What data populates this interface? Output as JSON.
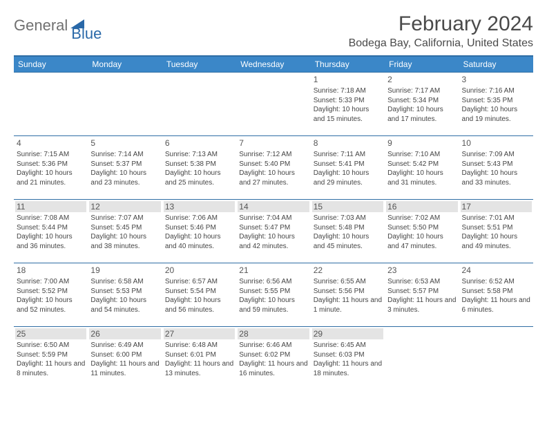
{
  "logo": {
    "part1": "General",
    "part2": "Blue"
  },
  "month_title": "February 2024",
  "location": "Bodega Bay, California, United States",
  "colors": {
    "header_bg": "#3b87c8",
    "header_border": "#2e6da4",
    "shade_bg": "#e4e4e4",
    "logo_gray": "#707070",
    "logo_blue": "#2968a8"
  },
  "weekdays": [
    "Sunday",
    "Monday",
    "Tuesday",
    "Wednesday",
    "Thursday",
    "Friday",
    "Saturday"
  ],
  "weeks": [
    [
      null,
      null,
      null,
      null,
      {
        "n": "1",
        "sr": "Sunrise: 7:18 AM",
        "ss": "Sunset: 5:33 PM",
        "dl": "Daylight: 10 hours and 15 minutes."
      },
      {
        "n": "2",
        "sr": "Sunrise: 7:17 AM",
        "ss": "Sunset: 5:34 PM",
        "dl": "Daylight: 10 hours and 17 minutes."
      },
      {
        "n": "3",
        "sr": "Sunrise: 7:16 AM",
        "ss": "Sunset: 5:35 PM",
        "dl": "Daylight: 10 hours and 19 minutes."
      }
    ],
    [
      {
        "n": "4",
        "sr": "Sunrise: 7:15 AM",
        "ss": "Sunset: 5:36 PM",
        "dl": "Daylight: 10 hours and 21 minutes."
      },
      {
        "n": "5",
        "sr": "Sunrise: 7:14 AM",
        "ss": "Sunset: 5:37 PM",
        "dl": "Daylight: 10 hours and 23 minutes."
      },
      {
        "n": "6",
        "sr": "Sunrise: 7:13 AM",
        "ss": "Sunset: 5:38 PM",
        "dl": "Daylight: 10 hours and 25 minutes."
      },
      {
        "n": "7",
        "sr": "Sunrise: 7:12 AM",
        "ss": "Sunset: 5:40 PM",
        "dl": "Daylight: 10 hours and 27 minutes."
      },
      {
        "n": "8",
        "sr": "Sunrise: 7:11 AM",
        "ss": "Sunset: 5:41 PM",
        "dl": "Daylight: 10 hours and 29 minutes."
      },
      {
        "n": "9",
        "sr": "Sunrise: 7:10 AM",
        "ss": "Sunset: 5:42 PM",
        "dl": "Daylight: 10 hours and 31 minutes."
      },
      {
        "n": "10",
        "sr": "Sunrise: 7:09 AM",
        "ss": "Sunset: 5:43 PM",
        "dl": "Daylight: 10 hours and 33 minutes."
      }
    ],
    [
      {
        "n": "11",
        "sr": "Sunrise: 7:08 AM",
        "ss": "Sunset: 5:44 PM",
        "dl": "Daylight: 10 hours and 36 minutes."
      },
      {
        "n": "12",
        "sr": "Sunrise: 7:07 AM",
        "ss": "Sunset: 5:45 PM",
        "dl": "Daylight: 10 hours and 38 minutes."
      },
      {
        "n": "13",
        "sr": "Sunrise: 7:06 AM",
        "ss": "Sunset: 5:46 PM",
        "dl": "Daylight: 10 hours and 40 minutes."
      },
      {
        "n": "14",
        "sr": "Sunrise: 7:04 AM",
        "ss": "Sunset: 5:47 PM",
        "dl": "Daylight: 10 hours and 42 minutes."
      },
      {
        "n": "15",
        "sr": "Sunrise: 7:03 AM",
        "ss": "Sunset: 5:48 PM",
        "dl": "Daylight: 10 hours and 45 minutes."
      },
      {
        "n": "16",
        "sr": "Sunrise: 7:02 AM",
        "ss": "Sunset: 5:50 PM",
        "dl": "Daylight: 10 hours and 47 minutes."
      },
      {
        "n": "17",
        "sr": "Sunrise: 7:01 AM",
        "ss": "Sunset: 5:51 PM",
        "dl": "Daylight: 10 hours and 49 minutes."
      }
    ],
    [
      {
        "n": "18",
        "sr": "Sunrise: 7:00 AM",
        "ss": "Sunset: 5:52 PM",
        "dl": "Daylight: 10 hours and 52 minutes."
      },
      {
        "n": "19",
        "sr": "Sunrise: 6:58 AM",
        "ss": "Sunset: 5:53 PM",
        "dl": "Daylight: 10 hours and 54 minutes."
      },
      {
        "n": "20",
        "sr": "Sunrise: 6:57 AM",
        "ss": "Sunset: 5:54 PM",
        "dl": "Daylight: 10 hours and 56 minutes."
      },
      {
        "n": "21",
        "sr": "Sunrise: 6:56 AM",
        "ss": "Sunset: 5:55 PM",
        "dl": "Daylight: 10 hours and 59 minutes."
      },
      {
        "n": "22",
        "sr": "Sunrise: 6:55 AM",
        "ss": "Sunset: 5:56 PM",
        "dl": "Daylight: 11 hours and 1 minute."
      },
      {
        "n": "23",
        "sr": "Sunrise: 6:53 AM",
        "ss": "Sunset: 5:57 PM",
        "dl": "Daylight: 11 hours and 3 minutes."
      },
      {
        "n": "24",
        "sr": "Sunrise: 6:52 AM",
        "ss": "Sunset: 5:58 PM",
        "dl": "Daylight: 11 hours and 6 minutes."
      }
    ],
    [
      {
        "n": "25",
        "sr": "Sunrise: 6:50 AM",
        "ss": "Sunset: 5:59 PM",
        "dl": "Daylight: 11 hours and 8 minutes."
      },
      {
        "n": "26",
        "sr": "Sunrise: 6:49 AM",
        "ss": "Sunset: 6:00 PM",
        "dl": "Daylight: 11 hours and 11 minutes."
      },
      {
        "n": "27",
        "sr": "Sunrise: 6:48 AM",
        "ss": "Sunset: 6:01 PM",
        "dl": "Daylight: 11 hours and 13 minutes."
      },
      {
        "n": "28",
        "sr": "Sunrise: 6:46 AM",
        "ss": "Sunset: 6:02 PM",
        "dl": "Daylight: 11 hours and 16 minutes."
      },
      {
        "n": "29",
        "sr": "Sunrise: 6:45 AM",
        "ss": "Sunset: 6:03 PM",
        "dl": "Daylight: 11 hours and 18 minutes."
      },
      null,
      null
    ]
  ],
  "shaded_rows": [
    2,
    4
  ]
}
